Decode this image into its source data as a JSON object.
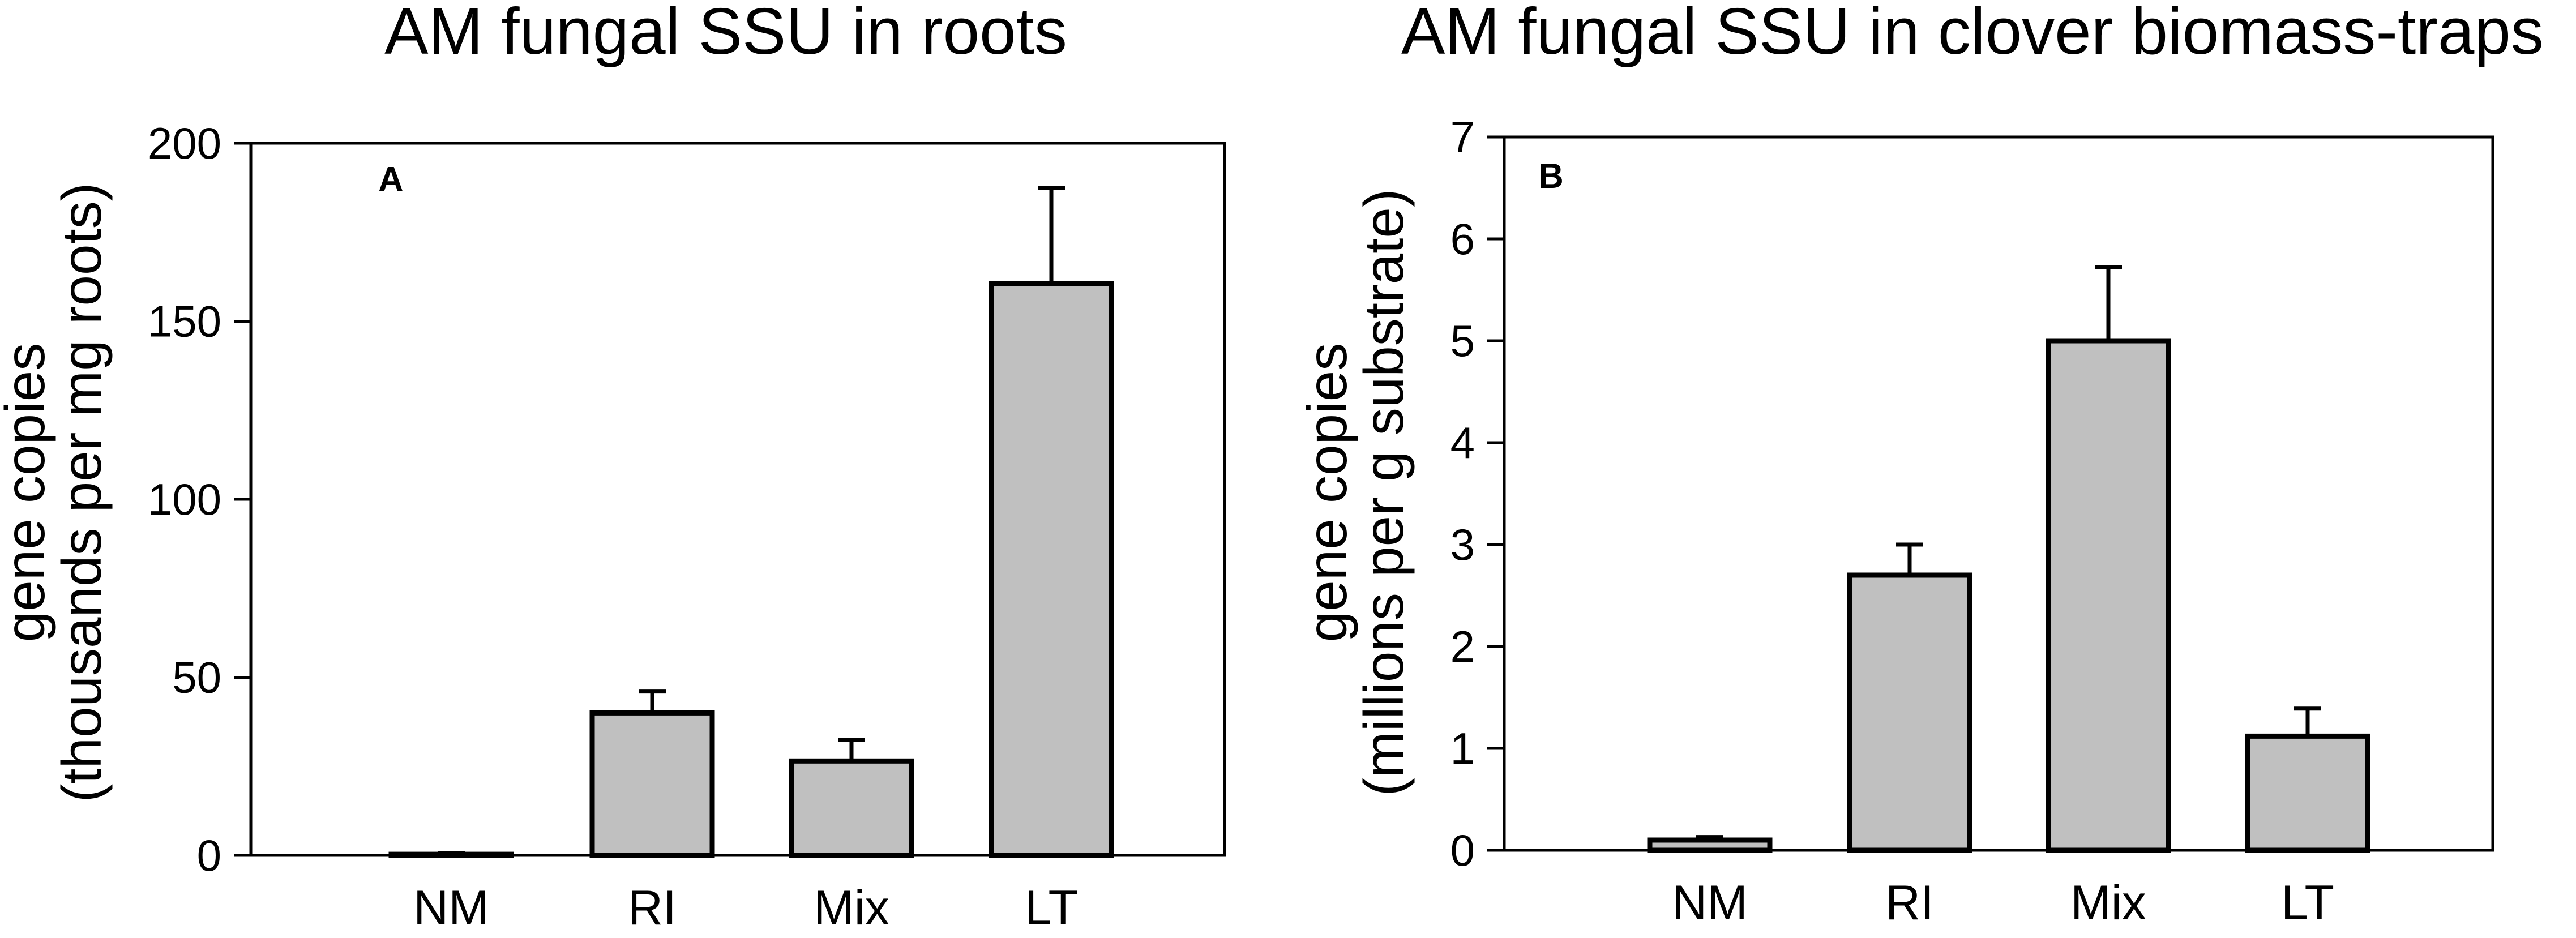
{
  "chart_data": [
    {
      "type": "bar",
      "panel_label": "A",
      "title": "AM fungal SSU in roots",
      "ylabel_lines": [
        "gene copies",
        "(thousands per mg roots)"
      ],
      "xlabel": "",
      "categories": [
        "NM",
        "RI",
        "Mix",
        "LT"
      ],
      "values": [
        0.3,
        40,
        26.5,
        160.5
      ],
      "errors": [
        0.3,
        6,
        6,
        27
      ],
      "ylim": [
        0,
        200
      ],
      "yticks": [
        0,
        50,
        100,
        150,
        200
      ],
      "bar_color": "#c0c0c0",
      "grid": false
    },
    {
      "type": "bar",
      "panel_label": "B",
      "title": "AM fungal SSU in clover biomass-traps",
      "ylabel_lines": [
        "gene copies",
        "(millions  per g substrate)"
      ],
      "xlabel": "",
      "categories": [
        "NM",
        "RI",
        "Mix",
        "LT"
      ],
      "values": [
        0.1,
        2.7,
        5.0,
        1.12
      ],
      "errors": [
        0.03,
        0.3,
        0.72,
        0.27
      ],
      "ylim": [
        0,
        7
      ],
      "yticks": [
        0,
        1,
        2,
        3,
        4,
        5,
        6,
        7
      ],
      "bar_color": "#c0c0c0",
      "grid": false
    }
  ]
}
